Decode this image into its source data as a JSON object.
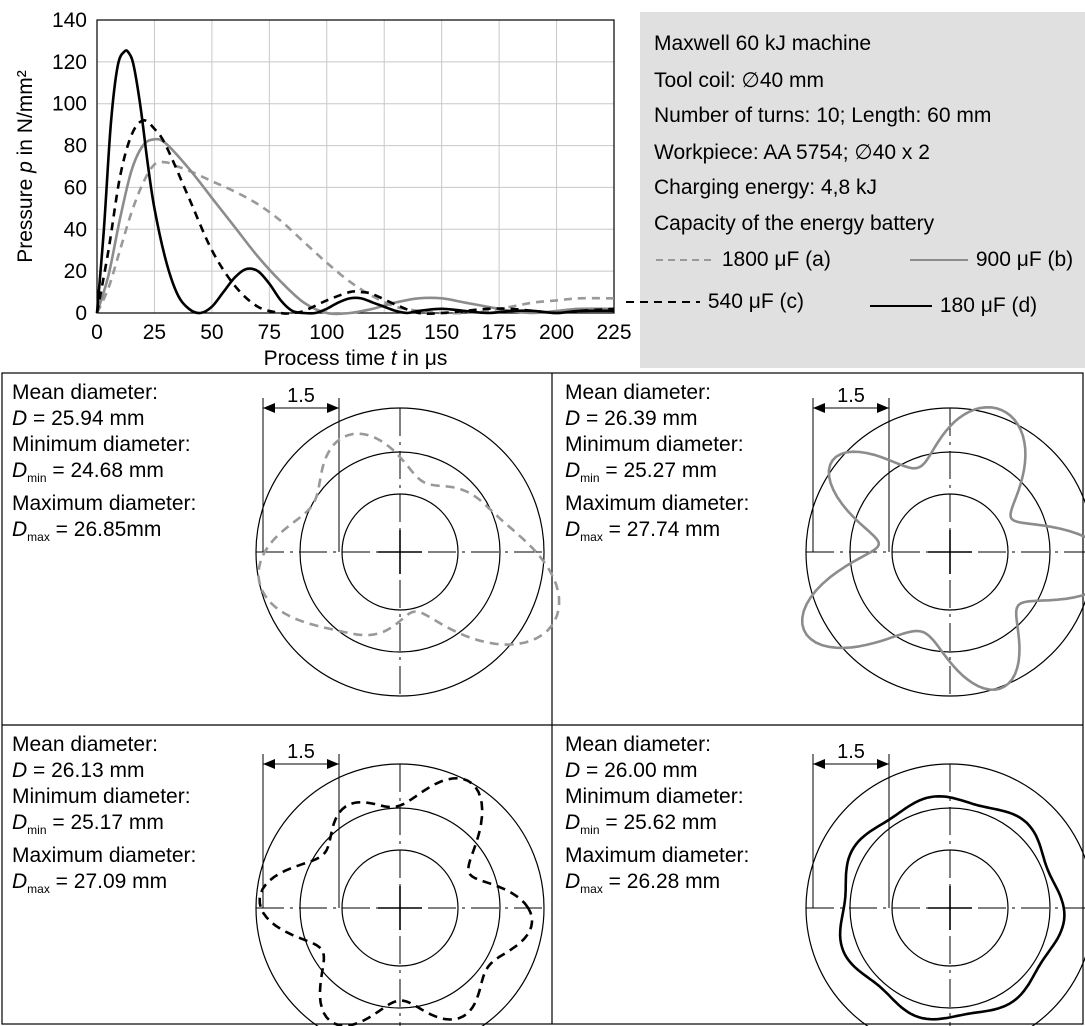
{
  "chart_data": [
    {
      "type": "line",
      "title": "",
      "xlabel_prefix": "Process time ",
      "xlabel_var": "t",
      "xlabel_suffix": " in μs",
      "ylabel_prefix": "Pressure ",
      "ylabel_var": "p",
      "ylabel_suffix": " in N/mm²",
      "xlim": [
        0,
        225
      ],
      "ylim": [
        0,
        140
      ],
      "xticks": [
        0,
        25,
        50,
        75,
        100,
        125,
        150,
        175,
        200,
        225
      ],
      "yticks": [
        0,
        20,
        40,
        60,
        80,
        100,
        120,
        140
      ],
      "grid": true,
      "series": [
        {
          "name": "1800 μF (a)",
          "color": "#999999",
          "dash": "dashed",
          "x": [
            0,
            5,
            10,
            15,
            20,
            25,
            30,
            35,
            40,
            50,
            60,
            70,
            80,
            90,
            100,
            110,
            120,
            130,
            140,
            150,
            160,
            170,
            180,
            190,
            200,
            210,
            225
          ],
          "y": [
            0,
            12,
            30,
            48,
            62,
            71,
            72,
            70,
            68,
            63,
            58,
            52,
            44,
            34,
            24,
            15,
            8,
            3,
            1,
            0,
            0,
            1,
            3,
            5,
            6,
            7,
            7
          ]
        },
        {
          "name": "900 μF (b)",
          "color": "#8c8c8c",
          "dash": "solid",
          "x": [
            0,
            5,
            10,
            15,
            20,
            25,
            30,
            40,
            50,
            60,
            70,
            80,
            90,
            100,
            110,
            120,
            130,
            140,
            150,
            160,
            170,
            180,
            190,
            200,
            210,
            225
          ],
          "y": [
            0,
            18,
            45,
            68,
            80,
            83,
            81,
            69,
            55,
            41,
            27,
            15,
            5,
            0,
            0,
            2,
            5,
            7,
            7,
            5,
            3,
            1,
            0,
            1,
            2,
            2
          ]
        },
        {
          "name": "540 μF (c)",
          "color": "#000000",
          "dash": "dashed",
          "x": [
            0,
            5,
            10,
            15,
            20,
            25,
            30,
            40,
            50,
            60,
            70,
            80,
            85,
            90,
            100,
            110,
            115,
            120,
            130,
            140,
            150,
            160,
            170,
            180,
            190,
            200,
            210,
            225
          ],
          "y": [
            0,
            30,
            65,
            85,
            92,
            88,
            80,
            55,
            30,
            13,
            3,
            0,
            0,
            1,
            6,
            10,
            10,
            9,
            4,
            0,
            0,
            1,
            2,
            2,
            1,
            0,
            1,
            2
          ],
          "label_visible": true
        },
        {
          "name": "180 μF (d)",
          "color": "#000000",
          "dash": "solid",
          "x": [
            0,
            3,
            6,
            9,
            12,
            14,
            16,
            19,
            22,
            25,
            30,
            35,
            40,
            45,
            50,
            55,
            60,
            65,
            70,
            75,
            80,
            85,
            90,
            95,
            100,
            105,
            110,
            115,
            120,
            125,
            130,
            135,
            140,
            150,
            160,
            170,
            180,
            190,
            200,
            210,
            225
          ],
          "y": [
            0,
            40,
            90,
            118,
            125,
            124,
            118,
            98,
            72,
            50,
            25,
            9,
            2,
            0,
            3,
            10,
            17,
            21,
            20,
            14,
            6,
            1,
            0,
            0,
            2,
            5,
            7,
            7,
            5,
            3,
            1,
            0,
            1,
            2,
            1,
            0,
            1,
            1,
            0,
            1,
            1
          ]
        }
      ],
      "legend": {
        "placement": "right-box",
        "header_lines": [
          "Maxwell 60 kJ machine",
          "Tool coil: ∅40 mm",
          "Number of turns: 10; Length: 60 mm",
          "Workpiece: AA 5754; ∅40 x 2",
          "Charging energy: 4,8 kJ",
          "Capacity of the energy battery"
        ],
        "background": "#e0e0e0"
      }
    },
    {
      "type": "polar-profile",
      "panels": [
        {
          "id": "a",
          "scale_label": "1.5",
          "mean_label": "Mean diameter:",
          "mean_symbol": "D",
          "mean_value": " =  25.94 mm",
          "min_label": "Minimum diameter:",
          "min_symbol": "D",
          "min_sub": "min",
          "min_value": " = 24.68 mm",
          "max_label": "Maximum diameter:",
          "max_symbol": "D",
          "max_sub": "max",
          "max_value": " = 26.85mm",
          "mean_mm": 25.94,
          "min_mm": 24.68,
          "max_mm": 26.85,
          "line_color": "#999999",
          "line_dash": "dashed",
          "harmonics": [
            [
              2,
              0.28,
              0.4
            ],
            [
              3,
              0.22,
              1.1
            ],
            [
              5,
              0.12,
              2.5
            ]
          ]
        },
        {
          "id": "b",
          "scale_label": "1.5",
          "mean_label": "Mean diameter:",
          "mean_symbol": "D",
          "mean_value": " =  26.39 mm",
          "min_label": "Minimum diameter:",
          "min_symbol": "D",
          "min_sub": "min",
          "min_value": " =  25.27 mm",
          "max_label": "Maximum diameter:",
          "max_symbol": "D",
          "max_sub": "max",
          "max_value": " = 27.74 mm",
          "mean_mm": 26.39,
          "min_mm": 25.27,
          "max_mm": 27.74,
          "line_color": "#8c8c8c",
          "line_dash": "solid",
          "harmonics": [
            [
              5,
              0.3,
              0.3
            ],
            [
              3,
              0.1,
              1.6
            ],
            [
              7,
              0.07,
              0.9
            ]
          ]
        },
        {
          "id": "c",
          "scale_label": "1.5",
          "mean_label": "Mean diameter:",
          "mean_symbol": "D",
          "mean_value": " =  26.13 mm",
          "min_label": "Minimum diameter:",
          "min_symbol": "D",
          "min_sub": "min",
          "min_value": " =  25.17 mm",
          "max_label": "Maximum diameter:",
          "max_symbol": "D",
          "max_sub": "max",
          "max_value": " = 27.09 mm",
          "mean_mm": 26.13,
          "min_mm": 25.17,
          "max_mm": 27.09,
          "line_color": "#000000",
          "line_dash": "dashed",
          "harmonics": [
            [
              6,
              0.2,
              0.2
            ],
            [
              4,
              0.12,
              1.3
            ],
            [
              3,
              0.08,
              2.4
            ]
          ]
        },
        {
          "id": "d",
          "scale_label": "1.5",
          "mean_label": "Mean diameter:",
          "mean_symbol": "D",
          "mean_value": " = 26.00 mm",
          "min_label": "Minimum diameter:",
          "min_symbol": "D",
          "min_sub": "min",
          "min_value": " =  25.62 mm",
          "max_label": "Maximum diameter:",
          "max_symbol": "D",
          "max_sub": "max",
          "max_value": " = 26.28 mm",
          "mean_mm": 26.0,
          "min_mm": 25.62,
          "max_mm": 26.28,
          "line_color": "#000000",
          "line_dash": "solid",
          "harmonics": [
            [
              7,
              0.12,
              0.5
            ],
            [
              5,
              0.04,
              1.2
            ]
          ]
        }
      ]
    }
  ]
}
